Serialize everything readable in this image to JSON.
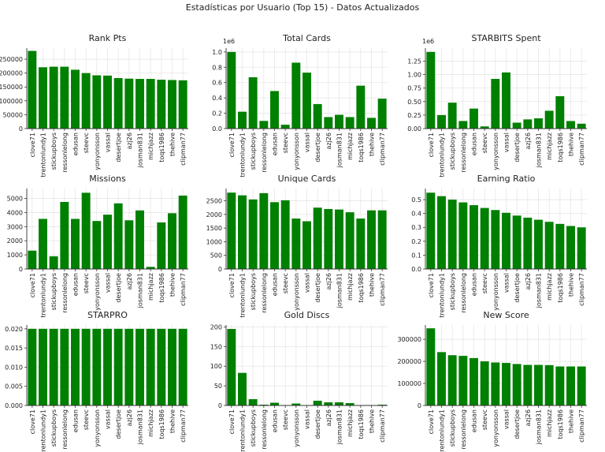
{
  "title": "Estadísticas por Usuario (Top 15) - Datos Actualizados",
  "bar_color": "#008000",
  "grid_color": "#e6e6e6",
  "chart_data": [
    {
      "type": "bar",
      "title": "Rank Pts",
      "categories": [
        "clove71",
        "trentonlundy1",
        "stickupboys",
        "ressonlelong",
        "edusan",
        "steevc",
        "yonyonsson",
        "vassal",
        "desertjoe",
        "azj26",
        "josman831",
        "michjazz",
        "toqs1986",
        "thehive",
        "clipman77"
      ],
      "values": [
        280000,
        221000,
        223000,
        223000,
        212000,
        200000,
        192000,
        191000,
        182000,
        180000,
        179000,
        179000,
        176000,
        175000,
        174000
      ],
      "ylim": [
        0,
        290000
      ],
      "yticks": [
        0,
        50000,
        100000,
        150000,
        200000,
        250000
      ],
      "ytick_labels": [
        "0",
        "50000",
        "100000",
        "150000",
        "200000",
        "250000"
      ],
      "offset_text": "",
      "grid": true
    },
    {
      "type": "bar",
      "title": "Total Cards",
      "categories": [
        "clove71",
        "trentonlundy1",
        "stickupboys",
        "ressonlelong",
        "edusan",
        "steevc",
        "yonyonsson",
        "vassal",
        "desertjoe",
        "azj26",
        "josman831",
        "michjazz",
        "toqs1986",
        "thehive",
        "clipman77"
      ],
      "values": [
        1000000,
        220000,
        670000,
        100000,
        490000,
        50000,
        860000,
        730000,
        320000,
        150000,
        180000,
        150000,
        560000,
        140000,
        390000
      ],
      "ylim": [
        0,
        1050000
      ],
      "yticks": [
        0,
        200000,
        400000,
        600000,
        800000,
        1000000
      ],
      "ytick_labels": [
        "0.0",
        "0.2",
        "0.4",
        "0.6",
        "0.8",
        "1.0"
      ],
      "offset_text": "1e6",
      "grid": true
    },
    {
      "type": "bar",
      "title": "STARBITS Spent",
      "categories": [
        "clove71",
        "trentonlundy1",
        "stickupboys",
        "ressonlelong",
        "edusan",
        "steevc",
        "yonyonsson",
        "vassal",
        "desertjoe",
        "azj26",
        "josman831",
        "michjazz",
        "toqs1986",
        "thehive",
        "clipman77"
      ],
      "values": [
        1420000,
        250000,
        480000,
        140000,
        370000,
        40000,
        920000,
        1040000,
        110000,
        170000,
        190000,
        330000,
        600000,
        140000,
        90000
      ],
      "ylim": [
        0,
        1490000
      ],
      "yticks": [
        0,
        250000,
        500000,
        750000,
        1000000,
        1250000
      ],
      "ytick_labels": [
        "0.00",
        "0.25",
        "0.50",
        "0.75",
        "1.00",
        "1.25"
      ],
      "offset_text": "1e6",
      "grid": true
    },
    {
      "type": "bar",
      "title": "Missions",
      "categories": [
        "clove71",
        "trentonlundy1",
        "stickupboys",
        "ressonlelong",
        "edusan",
        "steevc",
        "yonyonsson",
        "vassal",
        "desertjoe",
        "azj26",
        "josman831",
        "michjazz",
        "toqs1986",
        "thehive",
        "clipman77"
      ],
      "values": [
        1300,
        3550,
        900,
        4750,
        3550,
        5400,
        3400,
        3850,
        4650,
        3450,
        4150,
        150,
        3300,
        3950,
        5200
      ],
      "ylim": [
        0,
        5700
      ],
      "yticks": [
        0,
        1000,
        2000,
        3000,
        4000,
        5000
      ],
      "ytick_labels": [
        "0",
        "1000",
        "2000",
        "3000",
        "4000",
        "5000"
      ],
      "offset_text": "",
      "grid": true
    },
    {
      "type": "bar",
      "title": "Unique Cards",
      "categories": [
        "clove71",
        "trentonlundy1",
        "stickupboys",
        "ressonlelong",
        "edusan",
        "steevc",
        "yonyonsson",
        "vassal",
        "desertjoe",
        "azj26",
        "josman831",
        "michjazz",
        "toqs1986",
        "thehive",
        "clipman77"
      ],
      "values": [
        2800,
        2700,
        2550,
        2780,
        2450,
        2520,
        1850,
        1750,
        2250,
        2200,
        2180,
        2080,
        1850,
        2150,
        2150
      ],
      "ylim": [
        0,
        2950
      ],
      "yticks": [
        0,
        500,
        1000,
        1500,
        2000,
        2500
      ],
      "ytick_labels": [
        "0",
        "500",
        "1000",
        "1500",
        "2000",
        "2500"
      ],
      "offset_text": "",
      "grid": true
    },
    {
      "type": "bar",
      "title": "Earning Ratio",
      "categories": [
        "clove71",
        "trentonlundy1",
        "stickupboys",
        "ressonlelong",
        "edusan",
        "steevc",
        "yonyonsson",
        "vassal",
        "desertjoe",
        "azj26",
        "josman831",
        "michjazz",
        "toqs1986",
        "thehive",
        "clipman77"
      ],
      "values": [
        0.55,
        0.525,
        0.5,
        0.48,
        0.46,
        0.44,
        0.425,
        0.405,
        0.385,
        0.37,
        0.355,
        0.34,
        0.325,
        0.31,
        0.3
      ],
      "ylim": [
        0,
        0.58
      ],
      "yticks": [
        0,
        0.1,
        0.2,
        0.3,
        0.4,
        0.5
      ],
      "ytick_labels": [
        "0.0",
        "0.1",
        "0.2",
        "0.3",
        "0.4",
        "0.5"
      ],
      "offset_text": "",
      "grid": true
    },
    {
      "type": "bar",
      "title": "STARPRO",
      "categories": [
        "clove71",
        "trentonlundy1",
        "stickupboys",
        "ressonlelong",
        "edusan",
        "steevc",
        "yonyonsson",
        "vassal",
        "desertjoe",
        "azj26",
        "josman831",
        "michjazz",
        "toqs1986",
        "thehive",
        "clipman77"
      ],
      "values": [
        0.02,
        0.02,
        0.02,
        0.02,
        0.02,
        0.02,
        0.02,
        0.02,
        0.02,
        0.02,
        0.02,
        0.02,
        0.02,
        0.02,
        0.02
      ],
      "ylim": [
        0,
        0.021
      ],
      "yticks": [
        0,
        0.005,
        0.01,
        0.015,
        0.02
      ],
      "ytick_labels": [
        "0.000",
        "0.005",
        "0.010",
        "0.015",
        "0.020"
      ],
      "offset_text": "",
      "grid": true
    },
    {
      "type": "bar",
      "title": "Gold Discs",
      "categories": [
        "clove71",
        "trentonlundy1",
        "stickupboys",
        "ressonlelong",
        "edusan",
        "steevc",
        "yonyonsson",
        "vassal",
        "desertjoe",
        "azj26",
        "josman831",
        "michjazz",
        "toqs1986",
        "thehive",
        "clipman77"
      ],
      "values": [
        195,
        83,
        16,
        2,
        7,
        0,
        5,
        0,
        12,
        8,
        8,
        6,
        0,
        1,
        2
      ],
      "ylim": [
        0,
        205
      ],
      "yticks": [
        0,
        50,
        100,
        150,
        200
      ],
      "ytick_labels": [
        "0",
        "50",
        "100",
        "150",
        "200"
      ],
      "offset_text": "",
      "grid": true
    },
    {
      "type": "bar",
      "title": "New Score",
      "categories": [
        "clove71",
        "trentonlundy1",
        "stickupboys",
        "ressonlelong",
        "edusan",
        "steevc",
        "yonyonsson",
        "vassal",
        "desertjoe",
        "azj26",
        "josman831",
        "michjazz",
        "toqs1986",
        "thehive",
        "clipman77"
      ],
      "values": [
        350000,
        242000,
        228000,
        225000,
        215000,
        200000,
        195000,
        193000,
        188000,
        184000,
        184000,
        183000,
        177000,
        177000,
        177000
      ],
      "ylim": [
        0,
        365000
      ],
      "yticks": [
        0,
        100000,
        200000,
        300000
      ],
      "ytick_labels": [
        "0",
        "100000",
        "200000",
        "300000"
      ],
      "offset_text": "",
      "grid": true
    }
  ]
}
